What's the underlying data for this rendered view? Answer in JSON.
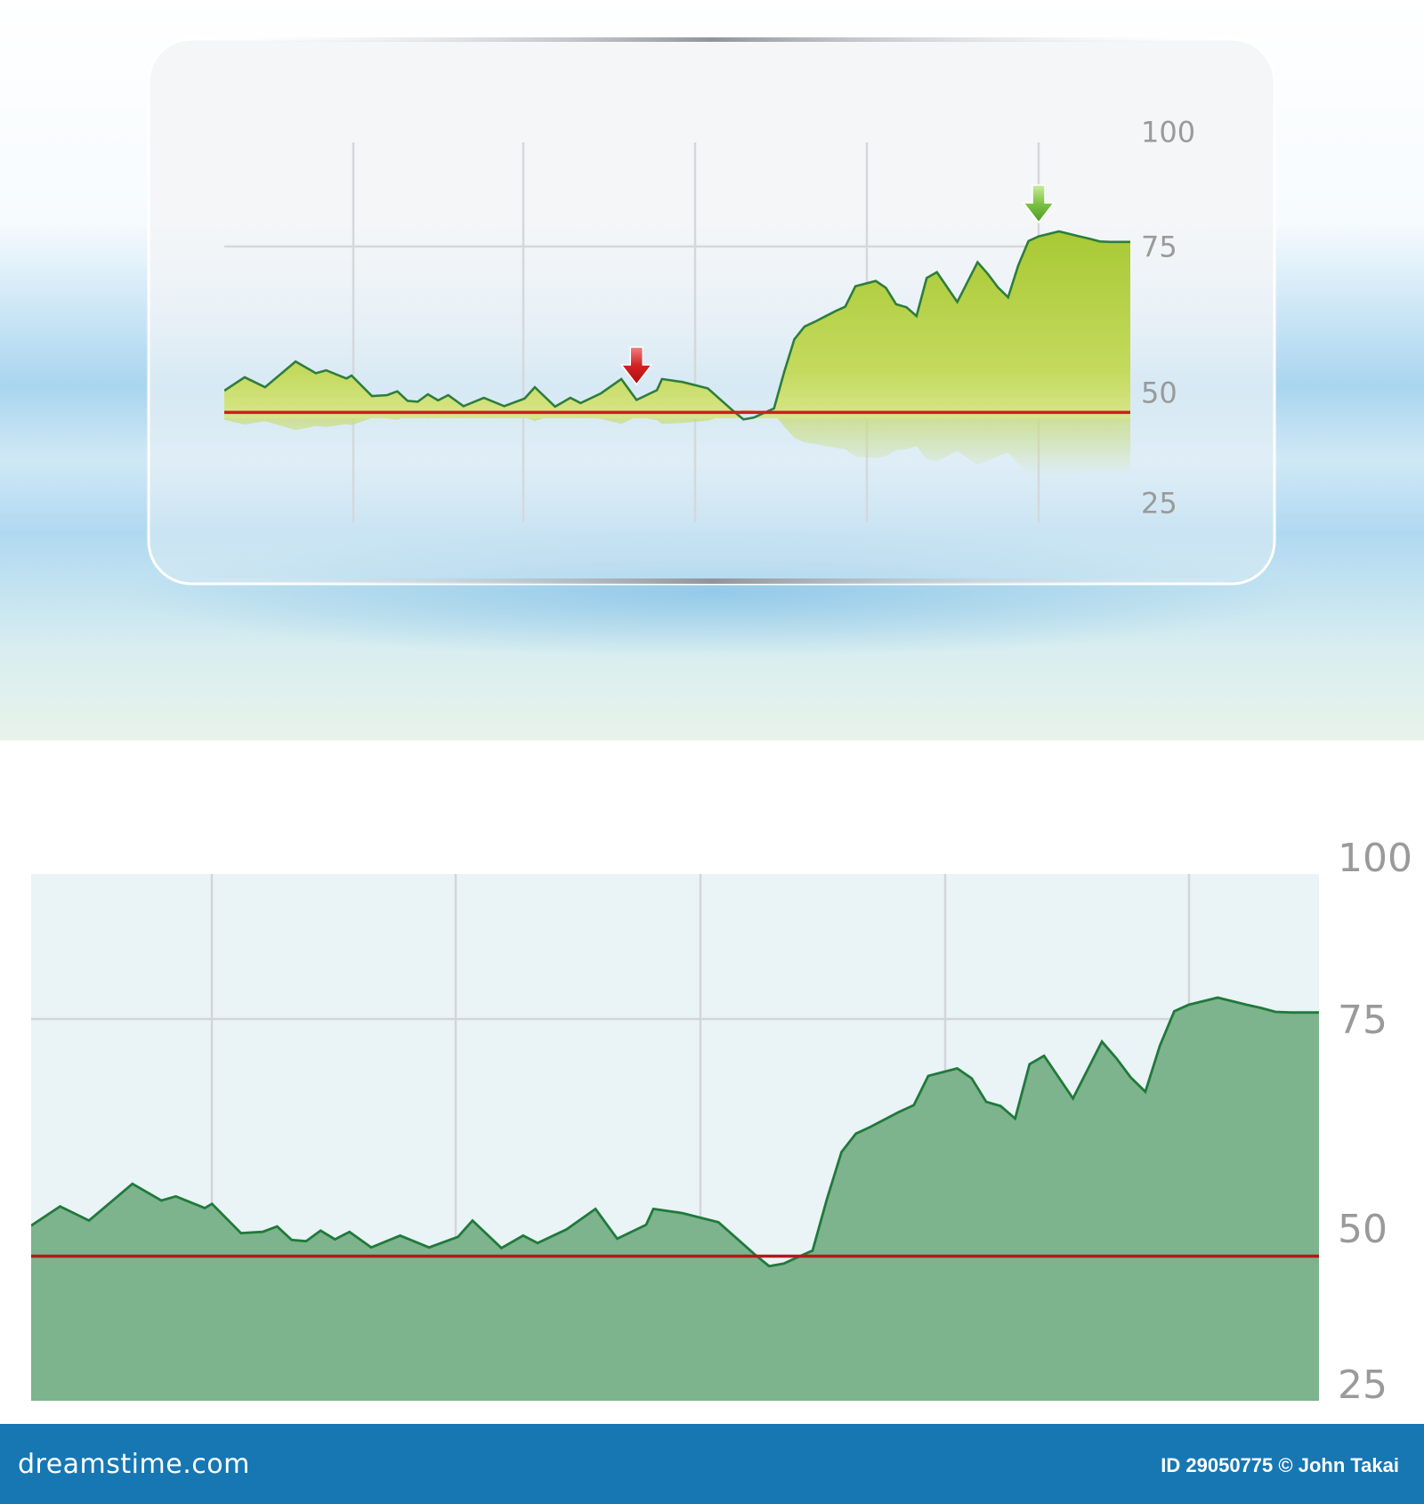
{
  "chart_data": [
    {
      "type": "area",
      "title": "",
      "xlabel": "",
      "ylabel": "",
      "yticks": [
        "100",
        "75",
        "50",
        "25"
      ],
      "ylim": [
        25,
        100
      ],
      "grid": true,
      "x": [
        0,
        2,
        4,
        7,
        9,
        10,
        12,
        12.5,
        14.5,
        16,
        17,
        18,
        19,
        20,
        21,
        22,
        23.5,
        25.5,
        27.5,
        29.5,
        30.5,
        32.5,
        34,
        35,
        37,
        39,
        40.5,
        42.5,
        43,
        45,
        47.5,
        50,
        51,
        52,
        54,
        55,
        56,
        57,
        58,
        59,
        60,
        61,
        62,
        64,
        65,
        66,
        67,
        68,
        69,
        70,
        72,
        74,
        75,
        76,
        77,
        78,
        79,
        80,
        82,
        84,
        85,
        86,
        87,
        89
      ],
      "series": [
        {
          "values": [
            50.3,
            52.6,
            50.9,
            55.3,
            53.3,
            53.8,
            52.4,
            52.9,
            49.2,
            49.4,
            50.2,
            48.1,
            47.9,
            49.6,
            48.2,
            49.4,
            46.9,
            48.8,
            46.9,
            48.6,
            50.9,
            46.8,
            48.8,
            47.6,
            49.8,
            52.3,
            48.3,
            50.4,
            52.3,
            51.8,
            50.7,
            45.8,
            43.9,
            44.3,
            46.4,
            53.5,
            59.1,
            61.3,
            62.1,
            63.0,
            63.9,
            64.7,
            68.2,
            69.1,
            67.9,
            65.1,
            64.6,
            63.1,
            69.6,
            70.6,
            65.5,
            72.3,
            70.3,
            68.0,
            66.3,
            71.8,
            76.2,
            77.2,
            78.3,
            77.2,
            76.7,
            76.1,
            76.0,
            76.0
          ]
        }
      ],
      "reference_line": 45.5,
      "markers": [
        {
          "label": "down-arrow",
          "color": "#d42020",
          "x": 40.5
        },
        {
          "label": "down-arrow",
          "color": "#7cc142",
          "x": 80
        }
      ],
      "colors": {
        "line": "#2d7d3c",
        "fill": "#b5cf3a",
        "reference": "#cc1f1f"
      }
    },
    {
      "type": "area",
      "title": "",
      "xlabel": "",
      "ylabel": "",
      "yticks": [
        "100",
        "75",
        "50",
        "25"
      ],
      "ylim": [
        25,
        100
      ],
      "grid": true,
      "x": [
        0,
        2,
        4,
        7,
        9,
        10,
        12,
        12.5,
        14.5,
        16,
        17,
        18,
        19,
        20,
        21,
        22,
        23.5,
        25.5,
        27.5,
        29.5,
        30.5,
        32.5,
        34,
        35,
        37,
        39,
        40.5,
        42.5,
        43,
        45,
        47.5,
        50,
        51,
        52,
        54,
        55,
        56,
        57,
        58,
        59,
        60,
        61,
        62,
        64,
        65,
        66,
        67,
        68,
        69,
        70,
        72,
        74,
        75,
        76,
        77,
        78,
        79,
        80,
        82,
        84,
        85,
        86,
        87,
        89
      ],
      "series": [
        {
          "values": [
            50.3,
            52.6,
            50.9,
            55.3,
            53.3,
            53.8,
            52.4,
            52.9,
            49.2,
            49.4,
            50.2,
            48.1,
            47.9,
            49.6,
            48.2,
            49.4,
            46.9,
            48.8,
            46.9,
            48.6,
            50.9,
            46.8,
            48.8,
            47.6,
            49.8,
            52.3,
            48.3,
            50.4,
            52.3,
            51.8,
            50.7,
            45.8,
            43.9,
            44.3,
            46.4,
            53.5,
            59.1,
            61.3,
            62.1,
            63.0,
            63.9,
            64.7,
            68.2,
            69.1,
            67.9,
            65.1,
            64.6,
            63.1,
            69.6,
            70.6,
            65.5,
            72.3,
            70.3,
            68.0,
            66.3,
            71.8,
            76.2,
            77.2,
            78.3,
            77.2,
            76.7,
            76.1,
            76.0,
            76.0
          ]
        }
      ],
      "reference_line": 45.5,
      "colors": {
        "line": "#1f7a3a",
        "fill": "#7db38d",
        "reference": "#b11a1a"
      }
    }
  ],
  "footer": {
    "brand": "dreamstime.com",
    "credit": "ID 29050775 © John Takai"
  }
}
